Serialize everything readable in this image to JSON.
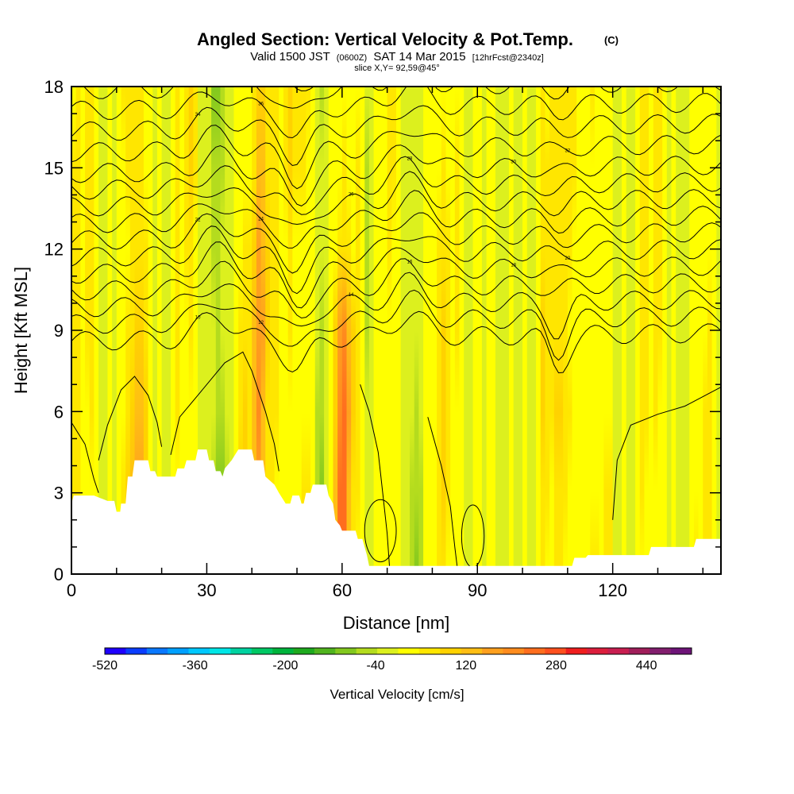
{
  "chart_data": {
    "type": "heatmap",
    "title": "Angled Section: Vertical Velocity & Pot.Temp.",
    "title_unit": "(C)",
    "subtitle_parts": {
      "valid": "Valid 1500 JST",
      "zulu": "(0600Z)",
      "date": "SAT 14 Mar 2015",
      "fcst": "[12hrFcst@2340z]"
    },
    "slice_label": "slice X,Y= 92,59@45°",
    "xlabel": "Distance [nm]",
    "ylabel": "Height [Kft MSL]",
    "xlim": [
      0,
      144
    ],
    "ylim": [
      0,
      18
    ],
    "x_ticks": [
      "0",
      "30",
      "60",
      "90",
      "120"
    ],
    "y_ticks": [
      "0",
      "3",
      "6",
      "9",
      "12",
      "15",
      "18"
    ],
    "colorbar": {
      "title": "Vertical Velocity [cm/s]",
      "labels": [
        "-520",
        "-360",
        "-200",
        "-40",
        "120",
        "280",
        "440"
      ],
      "range": [
        -520,
        520
      ],
      "colors": [
        "#1e00ff",
        "#0a3cff",
        "#0a78ff",
        "#00a0ff",
        "#00c8ff",
        "#00e6e6",
        "#00d2a0",
        "#00c864",
        "#00b43c",
        "#1eaa1e",
        "#50b41e",
        "#82c81e",
        "#b4dc1e",
        "#dcf01e",
        "#ffff00",
        "#ffe600",
        "#ffd200",
        "#ffbe14",
        "#ffa01e",
        "#ff8c1e",
        "#ff6e1e",
        "#ff501e",
        "#f01e1e",
        "#dc1e3c",
        "#c81e50",
        "#a01e5a",
        "#821e6e",
        "#6e1478"
      ]
    },
    "field": {
      "description_units": "cm/s",
      "dominant_range": [
        -120,
        200
      ],
      "series": [
        {
          "x": 14,
          "ztop": 18,
          "w": 160
        },
        {
          "x": 33,
          "ztop": 18,
          "w": -160
        },
        {
          "x": 42,
          "ztop": 18,
          "w": 180
        },
        {
          "x": 52,
          "ztop": 8,
          "w": 200
        },
        {
          "x": 55,
          "ztop": 18,
          "w": -150
        },
        {
          "x": 60,
          "ztop": 11,
          "w": 180
        },
        {
          "x": 75,
          "ztop": 18,
          "w": -80
        },
        {
          "x": 95,
          "ztop": 18,
          "w": -80
        },
        {
          "x": 110,
          "ztop": 7,
          "w": 160
        }
      ]
    },
    "contour_labels": [
      "10",
      "12",
      "14",
      "16",
      "18",
      "20",
      "22",
      "24",
      "26",
      "28",
      "30",
      "32",
      "34",
      "36",
      "38",
      "40",
      "42",
      "44"
    ]
  }
}
